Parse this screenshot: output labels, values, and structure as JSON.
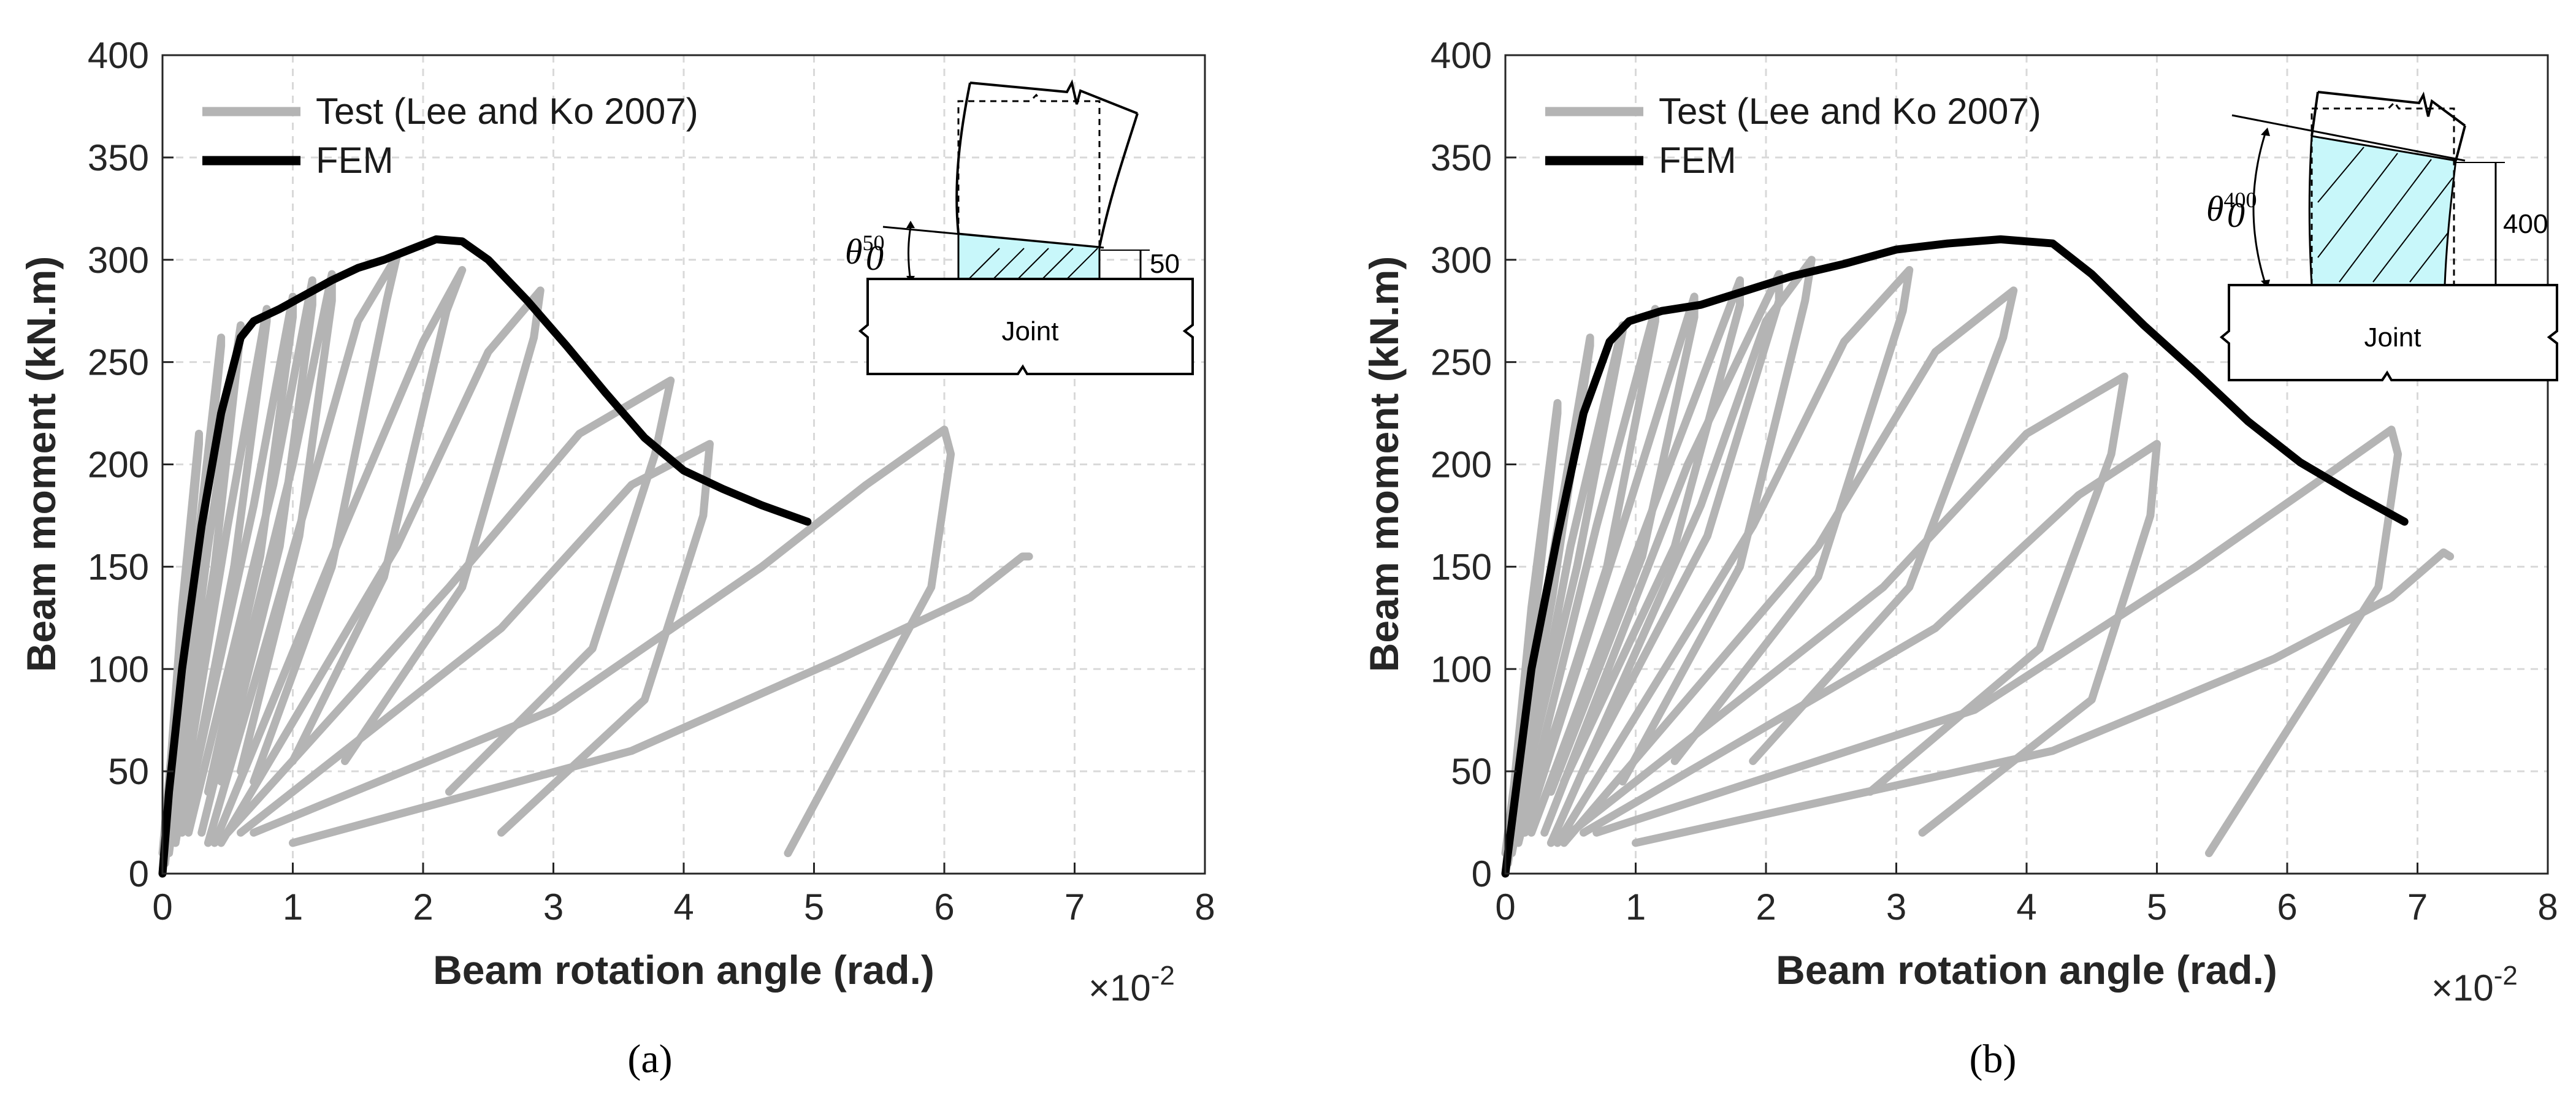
{
  "colors": {
    "test": "#b4b4b4",
    "fem": "#000000",
    "grid": "#d9d9d9",
    "hatch_fill": "#c8f7fa"
  },
  "subcaptions": [
    "(a)",
    "(b)"
  ],
  "chart_data": [
    {
      "type": "line",
      "panel": "(a)",
      "xlabel": "Beam rotation angle  (rad.)",
      "ylabel": "Beam moment  (kN.m)",
      "x_multiplier_label": "×10",
      "x_multiplier_exponent": "-2",
      "xlim": [
        0,
        8
      ],
      "ylim": [
        0,
        400
      ],
      "xticks": [
        "0",
        "1",
        "2",
        "3",
        "4",
        "5",
        "6",
        "7",
        "8"
      ],
      "yticks": [
        "0",
        "50",
        "100",
        "150",
        "200",
        "250",
        "300",
        "350",
        "400"
      ],
      "grid": true,
      "legend": {
        "placement": "top-left",
        "entries": [
          "Test (Lee and Ko 2007)",
          "FEM"
        ]
      },
      "inset": {
        "joint_label": "Joint",
        "offset_label": "50",
        "theta_symbol": "θ",
        "theta_sub": "0",
        "theta_sup": "50"
      },
      "series": [
        {
          "name": "FEM",
          "x": [
            0,
            0.05,
            0.15,
            0.3,
            0.45,
            0.6,
            0.7,
            0.9,
            1.1,
            1.3,
            1.5,
            1.7,
            1.9,
            2.1,
            2.3,
            2.5,
            2.8,
            3.1,
            3.4,
            3.7,
            4.0,
            4.3,
            4.6,
            4.95
          ],
          "y": [
            0,
            40,
            100,
            170,
            225,
            262,
            270,
            276,
            283,
            290,
            296,
            300,
            305,
            310,
            309,
            300,
            280,
            258,
            235,
            213,
            197,
            188,
            180,
            172
          ]
        },
        {
          "name": "Test (Lee and Ko 2007)",
          "loops": [
            {
              "x": [
                0.0,
                0.15,
                0.28,
                0.28,
                0.14,
                0.0
              ],
              "y": [
                0,
                130,
                215,
                210,
                110,
                10
              ]
            },
            {
              "x": [
                0.02,
                0.25,
                0.45,
                0.45,
                0.26,
                0.05
              ],
              "y": [
                5,
                150,
                262,
                258,
                135,
                25
              ]
            },
            {
              "x": [
                0.05,
                0.35,
                0.6,
                0.6,
                0.4,
                0.1
              ],
              "y": [
                10,
                160,
                268,
                265,
                150,
                30
              ]
            },
            {
              "x": [
                0.1,
                0.5,
                0.8,
                0.8,
                0.55,
                0.2
              ],
              "y": [
                15,
                170,
                276,
                270,
                150,
                35
              ]
            },
            {
              "x": [
                0.15,
                0.7,
                1.0,
                1.0,
                0.75,
                0.35
              ],
              "y": [
                20,
                180,
                282,
                272,
                155,
                40
              ]
            },
            {
              "x": [
                0.2,
                0.85,
                1.15,
                1.15,
                0.9,
                0.45
              ],
              "y": [
                20,
                190,
                290,
                278,
                160,
                45
              ]
            },
            {
              "x": [
                0.3,
                1.0,
                1.3,
                1.3,
                1.05,
                0.6
              ],
              "y": [
                20,
                200,
                293,
                280,
                165,
                50
              ]
            },
            {
              "x": [
                0.35,
                1.1,
                1.5,
                1.8,
                1.72,
                1.3,
                0.7
              ],
              "y": [
                15,
                180,
                270,
                302,
                280,
                150,
                45
              ]
            },
            {
              "x": [
                0.4,
                1.4,
                2.0,
                2.3,
                2.18,
                1.7,
                1.0
              ],
              "y": [
                15,
                170,
                260,
                295,
                275,
                145,
                55
              ]
            },
            {
              "x": [
                0.45,
                1.8,
                2.5,
                2.9,
                2.85,
                2.3,
                1.4
              ],
              "y": [
                15,
                160,
                255,
                285,
                262,
                140,
                55
              ]
            },
            {
              "x": [
                0.5,
                2.2,
                3.2,
                3.9,
                3.78,
                3.3,
                2.2
              ],
              "y": [
                20,
                140,
                215,
                241,
                205,
                110,
                40
              ]
            },
            {
              "x": [
                0.6,
                2.6,
                3.6,
                4.2,
                4.15,
                3.7,
                2.6
              ],
              "y": [
                20,
                120,
                190,
                210,
                175,
                85,
                20
              ]
            },
            {
              "x": [
                0.7,
                3.0,
                4.6,
                5.4,
                6.0,
                6.05,
                5.9,
                4.8
              ],
              "y": [
                20,
                80,
                150,
                190,
                217,
                205,
                140,
                10
              ]
            },
            {
              "x": [
                1.0,
                3.6,
                5.2,
                6.2,
                6.6,
                6.65
              ],
              "y": [
                15,
                60,
                105,
                135,
                155,
                155
              ]
            }
          ]
        }
      ]
    },
    {
      "type": "line",
      "panel": "(b)",
      "xlabel": "Beam rotation angle  (rad.)",
      "ylabel": "Beam moment  (kN.m)",
      "x_multiplier_label": "×10",
      "x_multiplier_exponent": "-2",
      "xlim": [
        0,
        8
      ],
      "ylim": [
        0,
        400
      ],
      "xticks": [
        "0",
        "1",
        "2",
        "3",
        "4",
        "5",
        "6",
        "7",
        "8"
      ],
      "yticks": [
        "0",
        "50",
        "100",
        "150",
        "200",
        "250",
        "300",
        "350",
        "400"
      ],
      "grid": true,
      "legend": {
        "placement": "top-left",
        "entries": [
          "Test (Lee and Ko 2007)",
          "FEM"
        ]
      },
      "inset": {
        "joint_label": "Joint",
        "offset_label": "400",
        "theta_symbol": "θ",
        "theta_sub": "0",
        "theta_sup": "400"
      },
      "series": [
        {
          "name": "FEM",
          "x": [
            0,
            0.08,
            0.2,
            0.4,
            0.6,
            0.8,
            0.95,
            1.2,
            1.5,
            1.8,
            2.2,
            2.6,
            3.0,
            3.4,
            3.8,
            4.2,
            4.5,
            4.9,
            5.3,
            5.7,
            6.1,
            6.5,
            6.9
          ],
          "y": [
            0,
            40,
            100,
            165,
            225,
            260,
            270,
            275,
            278,
            284,
            292,
            298,
            305,
            308,
            310,
            308,
            293,
            268,
            245,
            221,
            201,
            186,
            172
          ]
        },
        {
          "name": "Test (Lee and Ko 2007)",
          "loops": [
            {
              "x": [
                0.0,
                0.2,
                0.4,
                0.4,
                0.2,
                0.0
              ],
              "y": [
                0,
                130,
                230,
                225,
                110,
                10
              ]
            },
            {
              "x": [
                0.02,
                0.35,
                0.65,
                0.65,
                0.36,
                0.05
              ],
              "y": [
                5,
                150,
                262,
                258,
                135,
                25
              ]
            },
            {
              "x": [
                0.05,
                0.5,
                0.9,
                0.9,
                0.55,
                0.1
              ],
              "y": [
                10,
                160,
                268,
                265,
                150,
                30
              ]
            },
            {
              "x": [
                0.1,
                0.7,
                1.15,
                1.15,
                0.78,
                0.2
              ],
              "y": [
                15,
                170,
                276,
                270,
                150,
                35
              ]
            },
            {
              "x": [
                0.15,
                0.95,
                1.45,
                1.45,
                1.05,
                0.35
              ],
              "y": [
                20,
                180,
                282,
                272,
                155,
                40
              ]
            },
            {
              "x": [
                0.2,
                1.2,
                1.8,
                1.8,
                1.3,
                0.45
              ],
              "y": [
                20,
                190,
                290,
                278,
                160,
                45
              ]
            },
            {
              "x": [
                0.3,
                1.4,
                2.1,
                2.1,
                1.55,
                0.6
              ],
              "y": [
                20,
                200,
                293,
                280,
                165,
                50
              ]
            },
            {
              "x": [
                0.35,
                1.5,
                2.0,
                2.35,
                2.3,
                1.8,
                0.9
              ],
              "y": [
                15,
                180,
                270,
                300,
                280,
                150,
                45
              ]
            },
            {
              "x": [
                0.4,
                1.9,
                2.6,
                3.1,
                3.05,
                2.4,
                1.3
              ],
              "y": [
                15,
                170,
                260,
                295,
                275,
                145,
                55
              ]
            },
            {
              "x": [
                0.45,
                2.4,
                3.3,
                3.9,
                3.82,
                3.1,
                1.9
              ],
              "y": [
                15,
                160,
                255,
                285,
                262,
                140,
                55
              ]
            },
            {
              "x": [
                0.5,
                2.9,
                4.0,
                4.75,
                4.65,
                4.1,
                2.8
              ],
              "y": [
                20,
                140,
                215,
                243,
                205,
                110,
                40
              ]
            },
            {
              "x": [
                0.6,
                3.3,
                4.4,
                5.0,
                4.95,
                4.5,
                3.2
              ],
              "y": [
                20,
                120,
                185,
                210,
                175,
                85,
                20
              ]
            },
            {
              "x": [
                0.7,
                3.6,
                5.3,
                6.2,
                6.8,
                6.85,
                6.7,
                5.4
              ],
              "y": [
                20,
                80,
                150,
                190,
                217,
                205,
                140,
                10
              ]
            },
            {
              "x": [
                1.0,
                4.2,
                5.9,
                6.8,
                7.2,
                7.25
              ],
              "y": [
                15,
                60,
                105,
                135,
                157,
                155
              ]
            }
          ]
        }
      ]
    }
  ]
}
